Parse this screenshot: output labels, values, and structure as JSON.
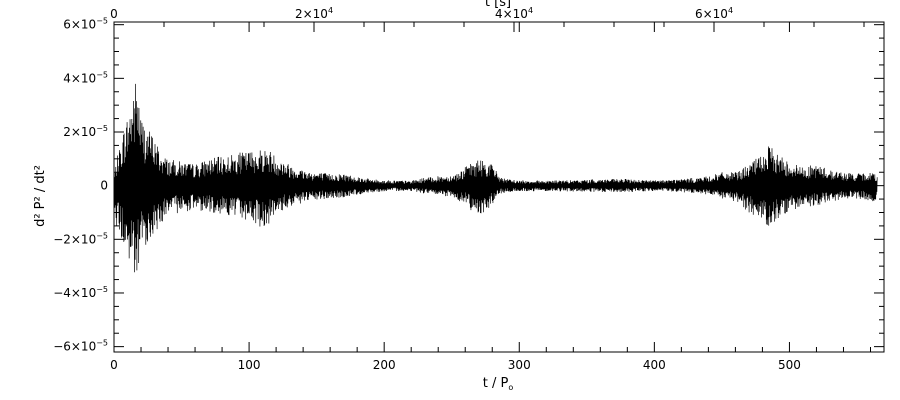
{
  "chart_data": {
    "type": "line",
    "title": "",
    "xlabel": "t / P",
    "xlabel_sub": "o",
    "ylabel": "d² P² / dt²",
    "x2label": "t [s]",
    "xlim": [
      0,
      570
    ],
    "ylim": [
      -6.2e-05,
      6.1e-05
    ],
    "x2lim": [
      0,
      77000
    ],
    "grid": false,
    "legend": "none",
    "colors": {
      "line": "#000000",
      "axes": "#000000",
      "background": "#ffffff"
    },
    "x_ticks": [
      {
        "value": 0,
        "label": "0"
      },
      {
        "value": 100,
        "label": "100"
      },
      {
        "value": 200,
        "label": "200"
      },
      {
        "value": 300,
        "label": "300"
      },
      {
        "value": 400,
        "label": "400"
      },
      {
        "value": 500,
        "label": "500"
      }
    ],
    "x2_ticks": [
      {
        "value": 0,
        "mant": "0",
        "exp": ""
      },
      {
        "value": 20000,
        "mant": "2×10",
        "exp": "4"
      },
      {
        "value": 40000,
        "mant": "4×10",
        "exp": "4"
      },
      {
        "value": 60000,
        "mant": "6×10",
        "exp": "4"
      }
    ],
    "y_ticks": [
      {
        "value": 6e-05,
        "mant": "6×10",
        "exp": "−5"
      },
      {
        "value": 4e-05,
        "mant": "4×10",
        "exp": "−5"
      },
      {
        "value": 2e-05,
        "mant": "2×10",
        "exp": "−5"
      },
      {
        "value": 0,
        "mant": "0",
        "exp": ""
      },
      {
        "value": -2e-05,
        "mant": "−2×10",
        "exp": "−5"
      },
      {
        "value": -4e-05,
        "mant": "−4×10",
        "exp": "−5"
      },
      {
        "value": -6e-05,
        "mant": "−6×10",
        "exp": "−5"
      }
    ],
    "series": [
      {
        "style": "oscillating signal envelope",
        "x": [
          0,
          2,
          5,
          8,
          11,
          14,
          17,
          20,
          25,
          30,
          35,
          40,
          50,
          60,
          70,
          80,
          90,
          100,
          110,
          115,
          120,
          130,
          140,
          150,
          160,
          170,
          180,
          190,
          200,
          210,
          220,
          230,
          240,
          250,
          255,
          260,
          265,
          270,
          275,
          280,
          285,
          290,
          300,
          320,
          340,
          360,
          380,
          400,
          420,
          440,
          450,
          460,
          470,
          480,
          485,
          490,
          500,
          510,
          520,
          530,
          540,
          550,
          560,
          565
        ],
        "upper": [
          3e-06,
          1e-05,
          1.6e-05,
          2.3e-05,
          2.8e-05,
          3.6e-05,
          4.2e-05,
          2.6e-05,
          2.2e-05,
          1.8e-05,
          1.2e-05,
          1e-05,
          9e-06,
          8e-06,
          1e-05,
          1.1e-05,
          1.2e-05,
          1.3e-05,
          1.4e-05,
          1.35e-05,
          1.1e-05,
          8e-06,
          6e-06,
          5e-06,
          4.5e-06,
          4.5e-06,
          3.5e-06,
          2.5e-06,
          2e-06,
          2e-06,
          1.8e-06,
          3e-06,
          3.5e-06,
          4e-06,
          5e-06,
          7e-06,
          8.5e-06,
          1e-05,
          9.5e-06,
          8e-06,
          4e-06,
          2.5e-06,
          2e-06,
          2e-06,
          2e-06,
          2.5e-06,
          2.5e-06,
          2e-06,
          2.5e-06,
          3.5e-06,
          5e-06,
          5e-06,
          8e-06,
          1.2e-05,
          1.5e-05,
          1.25e-05,
          9e-06,
          7e-06,
          8e-06,
          6e-06,
          5e-06,
          4.5e-06,
          5e-06,
          4.5e-06
        ],
        "lower": [
          -5e-06,
          -1.5e-05,
          -2e-05,
          -2.5e-05,
          -3e-05,
          -3.3e-05,
          -4e-05,
          -2.5e-05,
          -2.1e-05,
          -1.9e-05,
          -1.4e-05,
          -1.1e-05,
          -1e-05,
          -9e-06,
          -1e-05,
          -1.05e-05,
          -1.2e-05,
          -1.3e-05,
          -1.6e-05,
          -1.4e-05,
          -1.1e-05,
          -8e-06,
          -6.5e-06,
          -5.5e-06,
          -5e-06,
          -4.5e-06,
          -3.5e-06,
          -2.5e-06,
          -2.2e-06,
          -2e-06,
          -2e-06,
          -3e-06,
          -3.5e-06,
          -4.5e-06,
          -5.5e-06,
          -7e-06,
          -9.5e-06,
          -1.05e-05,
          -1e-05,
          -7e-06,
          -3.5e-06,
          -2.5e-06,
          -2.2e-06,
          -2e-06,
          -2.2e-06,
          -2.5e-06,
          -2.5e-06,
          -2e-06,
          -2.5e-06,
          -3.5e-06,
          -5e-06,
          -6e-06,
          -1e-05,
          -1.3e-05,
          -1.55e-05,
          -1.3e-05,
          -1e-05,
          -8e-06,
          -7.5e-06,
          -6e-06,
          -5e-06,
          -5e-06,
          -6e-06,
          -5.5e-06
        ]
      }
    ]
  }
}
